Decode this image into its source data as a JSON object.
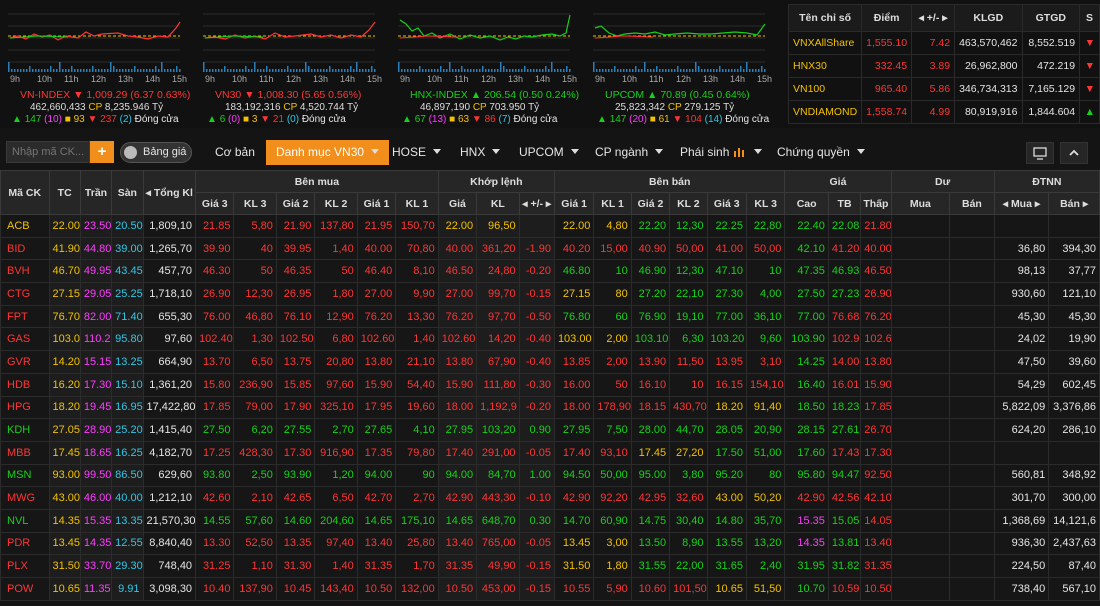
{
  "charts": [
    {
      "name": "VN-INDEX",
      "trend": "dn",
      "value": "1,009.29",
      "change": "6.37 0.63%",
      "volume": "462,660,433",
      "cp": "8,235.946 Tỷ",
      "adv": "147",
      "adv_ce": "10",
      "unch": "93",
      "dec": "237",
      "dec_fl": "2",
      "status": "Đóng cửa",
      "hours": [
        "9h",
        "10h",
        "11h",
        "12h",
        "13h",
        "14h",
        "15h"
      ]
    },
    {
      "name": "VN30",
      "trend": "dn",
      "value": "1,008.30",
      "change": "5.65 0.56%",
      "volume": "183,192,316",
      "cp": "4,520.744 Tỷ",
      "adv": "6",
      "adv_ce": "0",
      "unch": "3",
      "dec": "21",
      "dec_fl": "0",
      "status": "Đóng cửa",
      "hours": [
        "9h",
        "10h",
        "11h",
        "12h",
        "13h",
        "14h",
        "15h"
      ]
    },
    {
      "name": "HNX-INDEX",
      "trend": "up",
      "value": "206.54",
      "change": "0.50 0.24%",
      "volume": "46,897,190",
      "cp": "703.950 Tỷ",
      "adv": "67",
      "adv_ce": "13",
      "unch": "63",
      "dec": "86",
      "dec_fl": "7",
      "status": "Đóng cửa",
      "hours": [
        "9h",
        "10h",
        "11h",
        "12h",
        "13h",
        "14h",
        "15h"
      ]
    },
    {
      "name": "UPCOM",
      "trend": "up",
      "value": "70.89",
      "change": "0.45 0.64%",
      "volume": "25,823,342",
      "cp": "279.125 Tỷ",
      "adv": "147",
      "adv_ce": "20",
      "unch": "61",
      "dec": "104",
      "dec_fl": "14",
      "status": "Đóng cửa",
      "hours": [
        "9h",
        "10h",
        "11h",
        "12h",
        "13h",
        "14h",
        "15h"
      ]
    }
  ],
  "index_table": {
    "headers": [
      "Tên chỉ số",
      "Điểm",
      "+/-",
      "KLGD",
      "GTGD",
      "S"
    ],
    "rows": [
      [
        "VNXAllShare",
        "1,555.10",
        "7.42",
        "463,570,462",
        "8,552.519",
        "dn"
      ],
      [
        "HNX30",
        "332.45",
        "3.89",
        "26,962,800",
        "472.219",
        "dn"
      ],
      [
        "VN100",
        "965.40",
        "5.86",
        "346,734,313",
        "7,165.129",
        "dn"
      ],
      [
        "VNDIAMOND",
        "1,558.74",
        "4.99",
        "80,919,916",
        "1,844.604",
        "up"
      ]
    ]
  },
  "toolbar": {
    "search_placeholder": "Nhập mã CK...",
    "add": "+",
    "toggle": "Bảng giá",
    "tabs": [
      "Cơ bản",
      "Danh mục VN30",
      "HOSE",
      "HNX",
      "UPCOM",
      "CP ngành",
      "Phái sinh",
      "Chứng quyền"
    ]
  },
  "headers": {
    "group": [
      "Mã CK",
      "TC",
      "Trần",
      "Sàn",
      "Tổng Kl",
      "Bên mua",
      "Khớp lệnh",
      "Bên bán",
      "Giá",
      "Dư",
      "ĐTNN"
    ],
    "sub": [
      "Giá 3",
      "KL 3",
      "Giá 2",
      "KL 2",
      "Giá 1",
      "KL 1",
      "Giá",
      "KL",
      "+/-",
      "Giá 1",
      "KL 1",
      "Giá 2",
      "KL 2",
      "Giá 3",
      "KL 3",
      "Cao",
      "TB",
      "Thấp",
      "Mua",
      "Bán",
      "Mua",
      "Bán"
    ]
  },
  "colors": {
    "up": "#16d11a",
    "down": "#ff3535",
    "ref": "#f2c100",
    "ceil": "#ff3dff",
    "floor": "#31c7e7",
    "accent": "#f28e1c"
  },
  "rows": [
    [
      "ACB",
      "22.00",
      "23.50",
      "20.50",
      "1,809,10",
      "21.85",
      "5,80",
      "21.90",
      "137,80",
      "21.95",
      "150,70",
      "22.00",
      "96,50",
      "",
      "22.00",
      "4,80",
      "22.20",
      "12,30",
      "22.25",
      "22,80",
      "22.40",
      "22.08",
      "21.80",
      "",
      "",
      "",
      ""
    ],
    [
      "BID",
      "41.90",
      "44.80",
      "39.00",
      "1,265,70",
      "39.90",
      "40",
      "39.95",
      "1,40",
      "40.00",
      "70,80",
      "40.00",
      "361,20",
      "-1.90",
      "40.20",
      "15,00",
      "40.90",
      "50,00",
      "41.00",
      "50,00",
      "42.10",
      "41.20",
      "40.00",
      "",
      "",
      "36,80",
      "394,30"
    ],
    [
      "BVH",
      "46.70",
      "49.95",
      "43.45",
      "457,70",
      "46.30",
      "50",
      "46.35",
      "50",
      "46.40",
      "8,10",
      "46.50",
      "24,80",
      "-0.20",
      "46.80",
      "10",
      "46.90",
      "12,30",
      "47.10",
      "10",
      "47.35",
      "46.93",
      "46.50",
      "",
      "",
      "98,13",
      "37,77"
    ],
    [
      "CTG",
      "27.15",
      "29.05",
      "25.25",
      "1,718,10",
      "26.90",
      "12,30",
      "26.95",
      "1,80",
      "27.00",
      "9,90",
      "27.00",
      "99,70",
      "-0.15",
      "27.15",
      "80",
      "27.20",
      "22,10",
      "27.30",
      "4,00",
      "27.50",
      "27.23",
      "26.90",
      "",
      "",
      "930,60",
      "121,10"
    ],
    [
      "FPT",
      "76.70",
      "82.00",
      "71.40",
      "655,30",
      "76.00",
      "46,80",
      "76.10",
      "12,90",
      "76.20",
      "13,30",
      "76.20",
      "97,70",
      "-0.50",
      "76.80",
      "60",
      "76.90",
      "19,10",
      "77.00",
      "36,10",
      "77.00",
      "76.68",
      "76.20",
      "",
      "",
      "45,30",
      "45,30"
    ],
    [
      "GAS",
      "103.00",
      "110.20",
      "95.80",
      "97,60",
      "102.40",
      "1,30",
      "102.50",
      "6,80",
      "102.60",
      "1,40",
      "102.60",
      "14,20",
      "-0.40",
      "103.00",
      "2,00",
      "103.10",
      "6,30",
      "103.20",
      "9,60",
      "103.90",
      "102.91",
      "102.60",
      "",
      "",
      "24,02",
      "19,90"
    ],
    [
      "GVR",
      "14.20",
      "15.15",
      "13.25",
      "664,90",
      "13.70",
      "6,50",
      "13.75",
      "20,80",
      "13.80",
      "21,10",
      "13.80",
      "67,90",
      "-0.40",
      "13.85",
      "2,00",
      "13.90",
      "11,50",
      "13.95",
      "3,10",
      "14.25",
      "14.00",
      "13.80",
      "",
      "",
      "47,50",
      "39,60"
    ],
    [
      "HDB",
      "16.20",
      "17.30",
      "15.10",
      "1,361,20",
      "15.80",
      "236,90",
      "15.85",
      "97,60",
      "15.90",
      "54,40",
      "15.90",
      "111,80",
      "-0.30",
      "16.00",
      "50",
      "16.10",
      "10",
      "16.15",
      "154,10",
      "16.40",
      "16.01",
      "15.90",
      "",
      "",
      "54,29",
      "602,45"
    ],
    [
      "HPG",
      "18.20",
      "19.45",
      "16.95",
      "17,422,80",
      "17.85",
      "79,00",
      "17.90",
      "325,10",
      "17.95",
      "19,60",
      "18.00",
      "1,192,9",
      "-0.20",
      "18.00",
      "178,90",
      "18.15",
      "430,70",
      "18.20",
      "91,40",
      "18.50",
      "18.23",
      "17.85",
      "",
      "",
      "5,822,09",
      "3,376,86"
    ],
    [
      "KDH",
      "27.05",
      "28.90",
      "25.20",
      "1,415,40",
      "27.50",
      "6,20",
      "27.55",
      "2,70",
      "27.65",
      "4,10",
      "27.95",
      "103,20",
      "0.90",
      "27.95",
      "7,50",
      "28.00",
      "44,70",
      "28.05",
      "20,90",
      "28.15",
      "27.61",
      "26.70",
      "",
      "",
      "624,20",
      "286,10"
    ],
    [
      "MBB",
      "17.45",
      "18.65",
      "16.25",
      "4,182,70",
      "17.25",
      "428,30",
      "17.30",
      "916,90",
      "17.35",
      "79,80",
      "17.40",
      "291,00",
      "-0.05",
      "17.40",
      "93,10",
      "17.45",
      "27,20",
      "17.50",
      "51,00",
      "17.60",
      "17.43",
      "17.30",
      "",
      "",
      "",
      ""
    ],
    [
      "MSN",
      "93.00",
      "99.50",
      "86.50",
      "629,60",
      "93.80",
      "2,50",
      "93.90",
      "1,20",
      "94.00",
      "90",
      "94.00",
      "84,70",
      "1.00",
      "94.50",
      "50,00",
      "95.00",
      "3,80",
      "95.20",
      "80",
      "95.80",
      "94.47",
      "92.50",
      "",
      "",
      "560,81",
      "348,92"
    ],
    [
      "MWG",
      "43.00",
      "46.00",
      "40.00",
      "1,212,10",
      "42.60",
      "2,10",
      "42.65",
      "6,50",
      "42.70",
      "2,70",
      "42.90",
      "443,30",
      "-0.10",
      "42.90",
      "92,20",
      "42.95",
      "32,60",
      "43.00",
      "50,20",
      "42.90",
      "42.56",
      "42.10",
      "",
      "",
      "301,70",
      "300,00"
    ],
    [
      "NVL",
      "14.35",
      "15.35",
      "13.35",
      "21,570,30",
      "14.55",
      "57,60",
      "14.60",
      "204,60",
      "14.65",
      "175,10",
      "14.65",
      "648,70",
      "0.30",
      "14.70",
      "60,90",
      "14.75",
      "30,40",
      "14.80",
      "35,70",
      "15.35",
      "15.05",
      "14.05",
      "",
      "",
      "1,368,69",
      "14,121,6"
    ],
    [
      "PDR",
      "13.45",
      "14.35",
      "12.55",
      "8,840,40",
      "13.30",
      "52,50",
      "13.35",
      "97,40",
      "13.40",
      "25,80",
      "13.40",
      "765,00",
      "-0.05",
      "13.45",
      "3,00",
      "13.50",
      "8,90",
      "13.55",
      "13,20",
      "14.35",
      "13.81",
      "13.40",
      "",
      "",
      "936,30",
      "2,437,63"
    ],
    [
      "PLX",
      "31.50",
      "33.70",
      "29.30",
      "748,40",
      "31.25",
      "1,10",
      "31.30",
      "1,40",
      "31.35",
      "1,70",
      "31.35",
      "49,90",
      "-0.15",
      "31.50",
      "1,80",
      "31.55",
      "22,00",
      "31.65",
      "2,40",
      "31.95",
      "31.82",
      "31.35",
      "",
      "",
      "224,50",
      "87,40"
    ],
    [
      "POW",
      "10.65",
      "11.35",
      "9.91",
      "3,098,30",
      "10.40",
      "137,90",
      "10.45",
      "143,40",
      "10.50",
      "132,00",
      "10.50",
      "453,00",
      "-0.15",
      "10.55",
      "5,90",
      "10.60",
      "101,50",
      "10.65",
      "51,50",
      "10.70",
      "10.59",
      "10.50",
      "",
      "",
      "738,40",
      "567,10"
    ]
  ]
}
